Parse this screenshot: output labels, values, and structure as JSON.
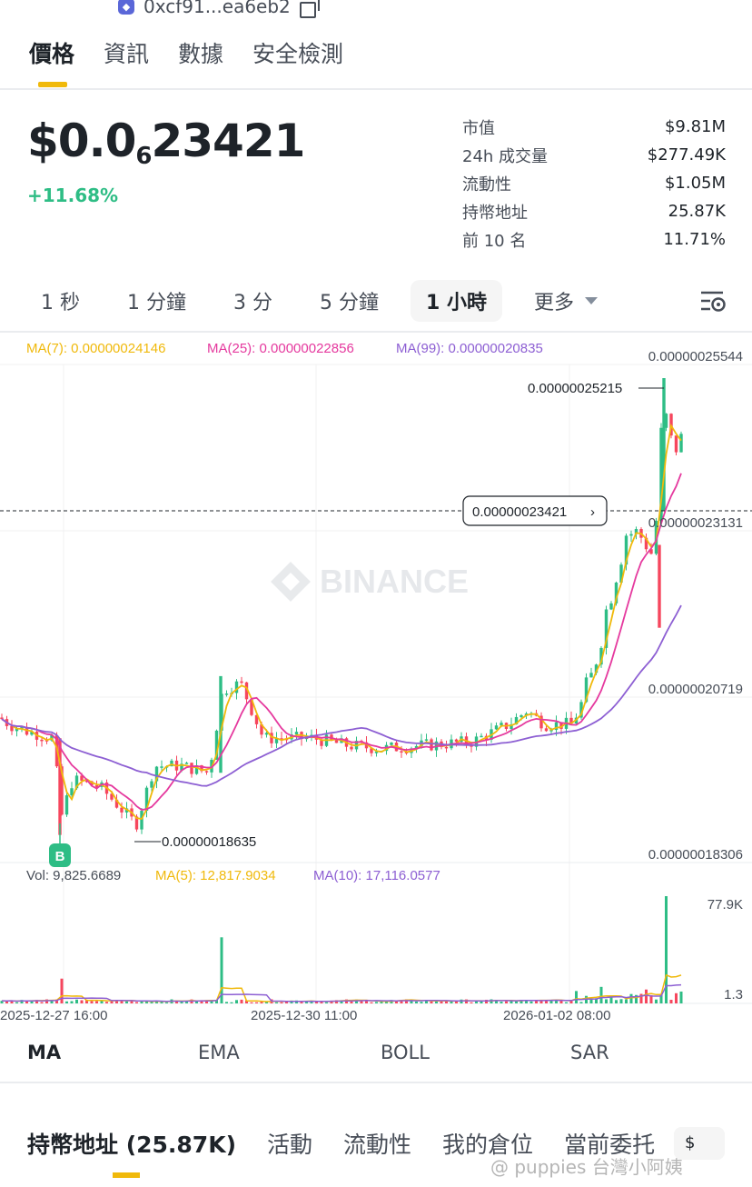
{
  "header": {
    "contract_address": "0xcf91...ea6eb2",
    "chain_icon": "ethereum-icon",
    "copy_icon": "copy-icon"
  },
  "top_tabs": [
    "價格",
    "資訊",
    "數據",
    "安全檢測"
  ],
  "active_top_tab": "價格",
  "price": {
    "prefix": "$0.0",
    "zero_count": "6",
    "digits": "23421",
    "change": "+11.68%",
    "change_color": "#2ebd85"
  },
  "stats": [
    {
      "label": "市值",
      "value": "$9.81M"
    },
    {
      "label": "24h 成交量",
      "value": "$277.49K"
    },
    {
      "label": "流動性",
      "value": "$1.05M"
    },
    {
      "label": "持幣地址",
      "value": "25.87K"
    },
    {
      "label": "前 10 名",
      "value": "11.71%"
    }
  ],
  "intervals": [
    "1 秒",
    "1 分鐘",
    "3 分",
    "5 分鐘",
    "1 小時",
    "更多"
  ],
  "active_interval": "1 小時",
  "chart": {
    "ma_legend": {
      "ma7": "MA(7): 0.00000024146",
      "ma25": "MA(25): 0.00000022856",
      "ma99": "MA(99): 0.00000020835"
    },
    "price_ticks": [
      "0.00000025544",
      "0.00000023131",
      "0.00000020719",
      "0.00000018306"
    ],
    "high_label": "0.00000025215",
    "low_label": "0.00000018635",
    "current_price_tag": "0.00000023421",
    "buy_marker": "B",
    "watermark": "BINANCE",
    "vol_legend": {
      "vol": "Vol: 9,825.6689",
      "ma5": "MA(5): 12,817.9034",
      "ma10": "MA(10): 17,116.0577"
    },
    "vol_ticks": [
      "77.9K",
      "1.3"
    ],
    "time_ticks": [
      "2025-12-27 16:00",
      "2025-12-30 11:00",
      "2026-01-02 08:00"
    ],
    "colors": {
      "up": "#2ebd85",
      "down": "#f6465d",
      "ma7": "#f0b90b",
      "ma25": "#e5399e",
      "ma99": "#8d5fd3"
    }
  },
  "chart_data": {
    "type": "candlestick",
    "title": "",
    "ylim": [
      1.8306e-07,
      2.5544e-07
    ],
    "x": [
      "2025-12-27 16:00",
      "2025-12-30 11:00",
      "2026-01-02 08:00"
    ],
    "series": [
      {
        "name": "MA(7)",
        "last": 2.4146e-07
      },
      {
        "name": "MA(25)",
        "last": 2.2856e-07
      },
      {
        "name": "MA(99)",
        "last": 2.0835e-07
      }
    ],
    "high": 2.5215e-07,
    "low": 1.8635e-07,
    "current": 2.3421e-07,
    "volume": {
      "last": 9825.6689,
      "ma5": 12817.9034,
      "ma10": 17116.0577,
      "ylim": [
        1.3,
        77900
      ]
    }
  },
  "indicator_tabs": [
    "MA",
    "EMA",
    "BOLL",
    "SAR"
  ],
  "active_indicator": "MA",
  "bottom_tabs": [
    "持幣地址 (25.87K)",
    "活動",
    "流動性",
    "我的倉位",
    "當前委托"
  ],
  "active_bottom_tab": "持幣地址 (25.87K)",
  "currency": "$",
  "source_watermark": "@ puppies 台灣小阿姨"
}
